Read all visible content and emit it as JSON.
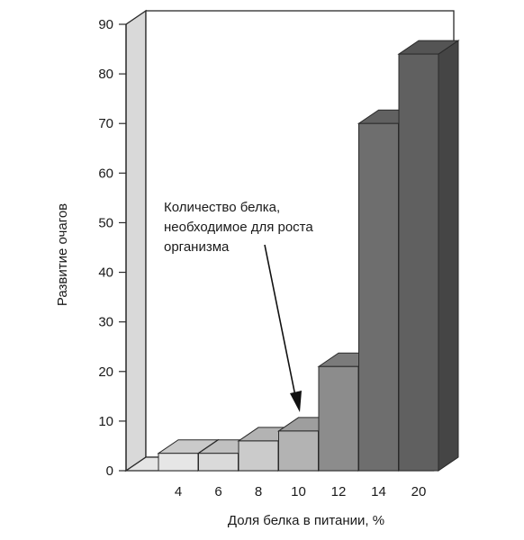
{
  "chart_data": {
    "type": "bar",
    "title": "",
    "categories": [
      "4",
      "6",
      "8",
      "10",
      "12",
      "14",
      "20"
    ],
    "values": [
      3.5,
      3.5,
      6,
      8,
      21,
      70,
      84
    ],
    "xlabel": "Доля белка в питании, %",
    "ylabel": "Развитие очагов",
    "ylim": [
      0,
      90
    ],
    "yticks": [
      "0",
      "10",
      "20",
      "30",
      "40",
      "50",
      "60",
      "70",
      "80",
      "90"
    ],
    "grid": false,
    "annotation": {
      "lines": [
        "Количество белка,",
        "необходимое для роста",
        "организма"
      ],
      "points_to_category": "10"
    },
    "colors": {
      "bars": [
        "#e6e6e6",
        "#dadada",
        "#cbcbcb",
        "#b3b3b3",
        "#8c8c8c",
        "#6e6e6e",
        "#606060"
      ],
      "wall": "#ffffff",
      "edge": "#2a2a2a"
    }
  }
}
